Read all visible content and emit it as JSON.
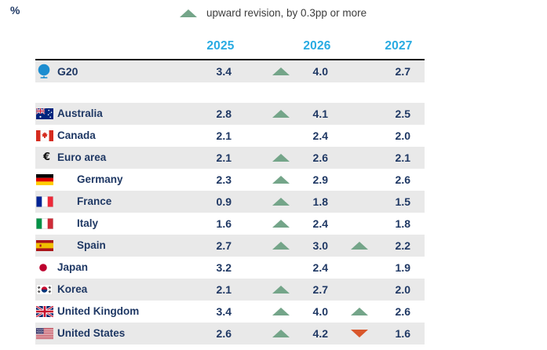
{
  "unit_label": "%",
  "legend": {
    "up_label": "upward revision, by 0.3pp or more"
  },
  "colors": {
    "year_header": "#29ABE2",
    "text_navy": "#1F3864",
    "row_stripe": "#E9E9E9",
    "upward_revision": "#74A589",
    "downward_revision": "#D9572C"
  },
  "chart_data": {
    "type": "table",
    "unit": "%",
    "legend_note": "upward revision, by 0.3pp or more",
    "columns": [
      "2025",
      "2026",
      "2027"
    ],
    "rows": [
      {
        "label": "G20",
        "flag": "g20",
        "group": true,
        "indent": false,
        "values": [
          3.4,
          4.0,
          2.7
        ],
        "display": [
          "3.4",
          "4.0",
          "2.7"
        ],
        "revisions": [
          null,
          "up",
          null
        ]
      },
      {
        "label": "Australia",
        "flag": "australia",
        "group": false,
        "indent": false,
        "values": [
          2.8,
          4.1,
          2.5
        ],
        "display": [
          "2.8",
          "4.1",
          "2.5"
        ],
        "revisions": [
          null,
          "up",
          null
        ]
      },
      {
        "label": "Canada",
        "flag": "canada",
        "group": false,
        "indent": false,
        "values": [
          2.1,
          2.4,
          2.0
        ],
        "display": [
          "2.1",
          "2.4",
          "2.0"
        ],
        "revisions": [
          null,
          null,
          null
        ]
      },
      {
        "label": "Euro area",
        "flag": "euro-area",
        "group": false,
        "indent": false,
        "values": [
          2.1,
          2.6,
          2.1
        ],
        "display": [
          "2.1",
          "2.6",
          "2.1"
        ],
        "revisions": [
          null,
          "up",
          null
        ]
      },
      {
        "label": "Germany",
        "flag": "germany",
        "group": false,
        "indent": true,
        "values": [
          2.3,
          2.9,
          2.6
        ],
        "display": [
          "2.3",
          "2.9",
          "2.6"
        ],
        "revisions": [
          null,
          "up",
          null
        ]
      },
      {
        "label": "France",
        "flag": "france",
        "group": false,
        "indent": true,
        "values": [
          0.9,
          1.8,
          1.5
        ],
        "display": [
          "0.9",
          "1.8",
          "1.5"
        ],
        "revisions": [
          null,
          "up",
          null
        ]
      },
      {
        "label": "Italy",
        "flag": "italy",
        "group": false,
        "indent": true,
        "values": [
          1.6,
          2.4,
          1.8
        ],
        "display": [
          "1.6",
          "2.4",
          "1.8"
        ],
        "revisions": [
          null,
          "up",
          null
        ]
      },
      {
        "label": "Spain",
        "flag": "spain",
        "group": false,
        "indent": true,
        "values": [
          2.7,
          3.0,
          2.2
        ],
        "display": [
          "2.7",
          "3.0",
          "2.2"
        ],
        "revisions": [
          null,
          "up",
          "up"
        ]
      },
      {
        "label": "Japan",
        "flag": "japan",
        "group": false,
        "indent": false,
        "values": [
          3.2,
          2.4,
          1.9
        ],
        "display": [
          "3.2",
          "2.4",
          "1.9"
        ],
        "revisions": [
          null,
          null,
          null
        ]
      },
      {
        "label": "Korea",
        "flag": "korea",
        "group": false,
        "indent": false,
        "values": [
          2.1,
          2.7,
          2.0
        ],
        "display": [
          "2.1",
          "2.7",
          "2.0"
        ],
        "revisions": [
          null,
          "up",
          null
        ]
      },
      {
        "label": "United Kingdom",
        "flag": "united-kingdom",
        "group": false,
        "indent": false,
        "values": [
          3.4,
          4.0,
          2.6
        ],
        "display": [
          "3.4",
          "4.0",
          "2.6"
        ],
        "revisions": [
          null,
          "up",
          "up"
        ]
      },
      {
        "label": "United States",
        "flag": "united-states",
        "group": false,
        "indent": false,
        "values": [
          2.6,
          4.2,
          1.6
        ],
        "display": [
          "2.6",
          "4.2",
          "1.6"
        ],
        "revisions": [
          null,
          "up",
          "down"
        ]
      }
    ]
  }
}
